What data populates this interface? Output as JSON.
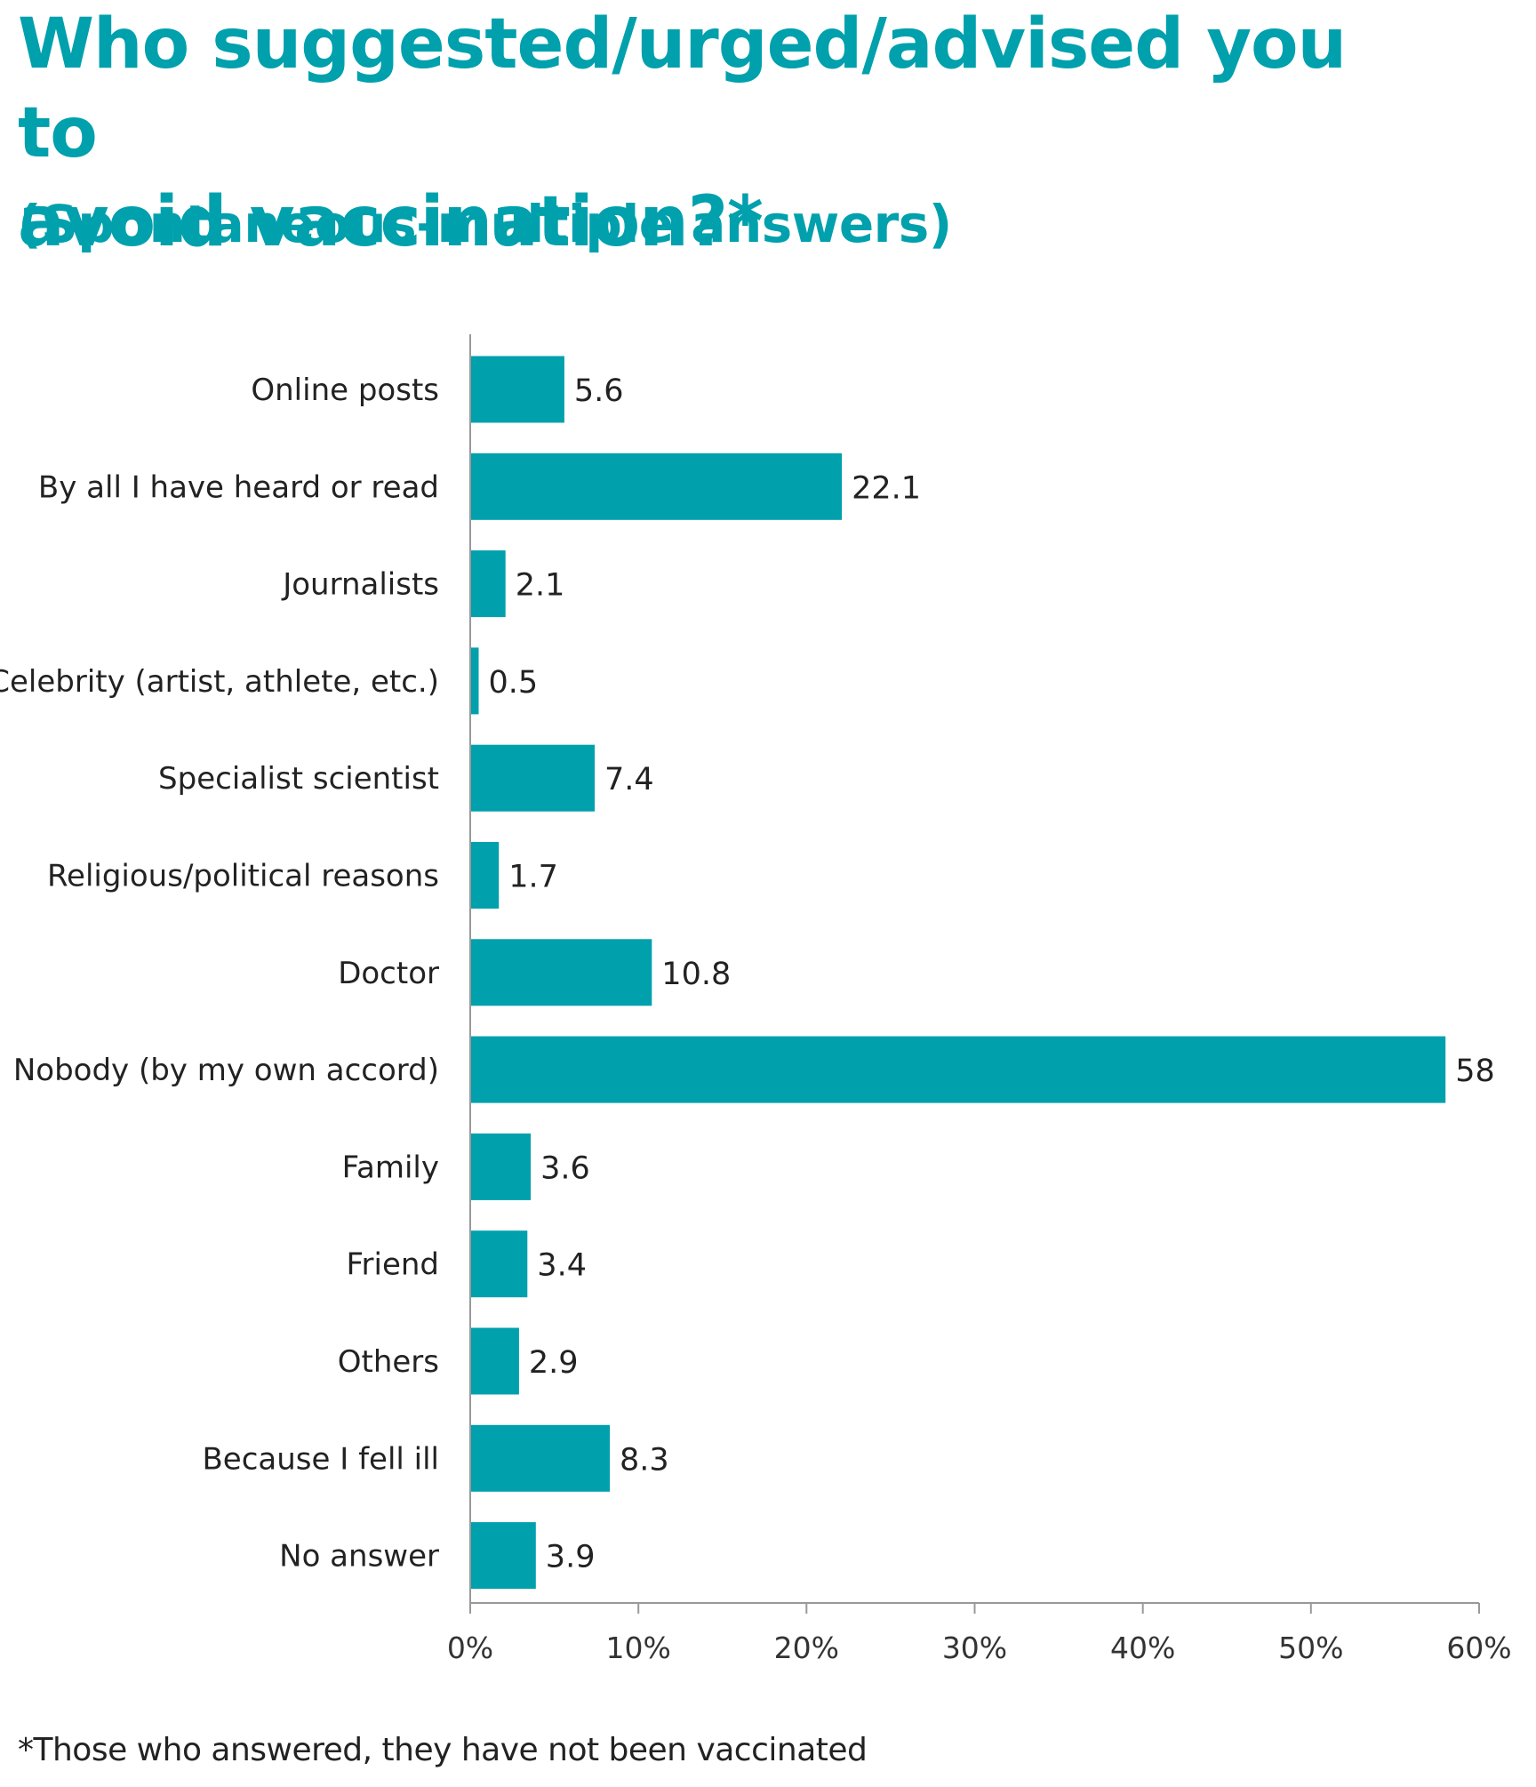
{
  "title_line1": "Who suggested/urged/advised you to",
  "title_line2": "avoid vaccination?*",
  "subtitle": "(Spontaneous-multiple answers)",
  "footnote": "*Those who answered, they have not been vaccinated",
  "colors": {
    "accent": "#00a0ad",
    "bar": "#00a0ad",
    "text": "#222222",
    "axis": "#999999"
  },
  "chart_data": {
    "type": "bar",
    "orientation": "horizontal",
    "categories": [
      "Online posts",
      "By all I have heard or read",
      "Journalists",
      "Celebrity (artist, athlete, etc.)",
      "Specialist scientist",
      "Religious/political reasons",
      "Doctor",
      "Nobody (by my own accord)",
      "Family",
      "Friend",
      "Others",
      "Because I fell ill",
      "No answer"
    ],
    "values": [
      5.6,
      22.1,
      2.1,
      0.5,
      7.4,
      1.7,
      10.8,
      58,
      3.6,
      3.4,
      2.9,
      8.3,
      3.9
    ],
    "value_labels": [
      "5.6",
      "22.1",
      "2.1",
      "0.5",
      "7.4",
      "1.7",
      "10.8",
      "58",
      "3.6",
      "3.4",
      "2.9",
      "8.3",
      "3.9"
    ],
    "x_ticks": [
      0,
      10,
      20,
      30,
      40,
      50,
      60
    ],
    "x_tick_labels": [
      "0%",
      "10%",
      "20%",
      "30%",
      "40%",
      "50%",
      "60%"
    ],
    "xlim": [
      0,
      60
    ],
    "grid": false,
    "legend": "none"
  }
}
